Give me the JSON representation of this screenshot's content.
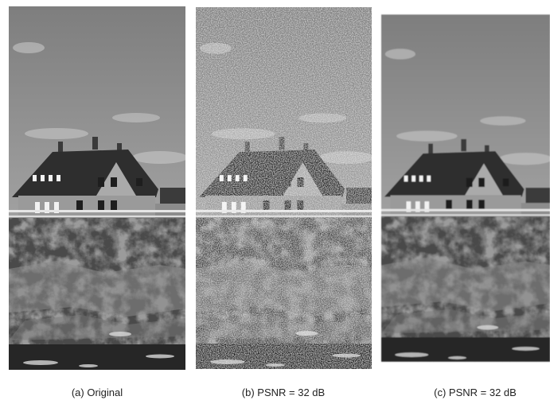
{
  "panels": [
    {
      "caption": "(a) Original"
    },
    {
      "caption": "(b) PSNR = 32 dB"
    },
    {
      "caption": "(c) PSNR = 32 dB"
    }
  ]
}
